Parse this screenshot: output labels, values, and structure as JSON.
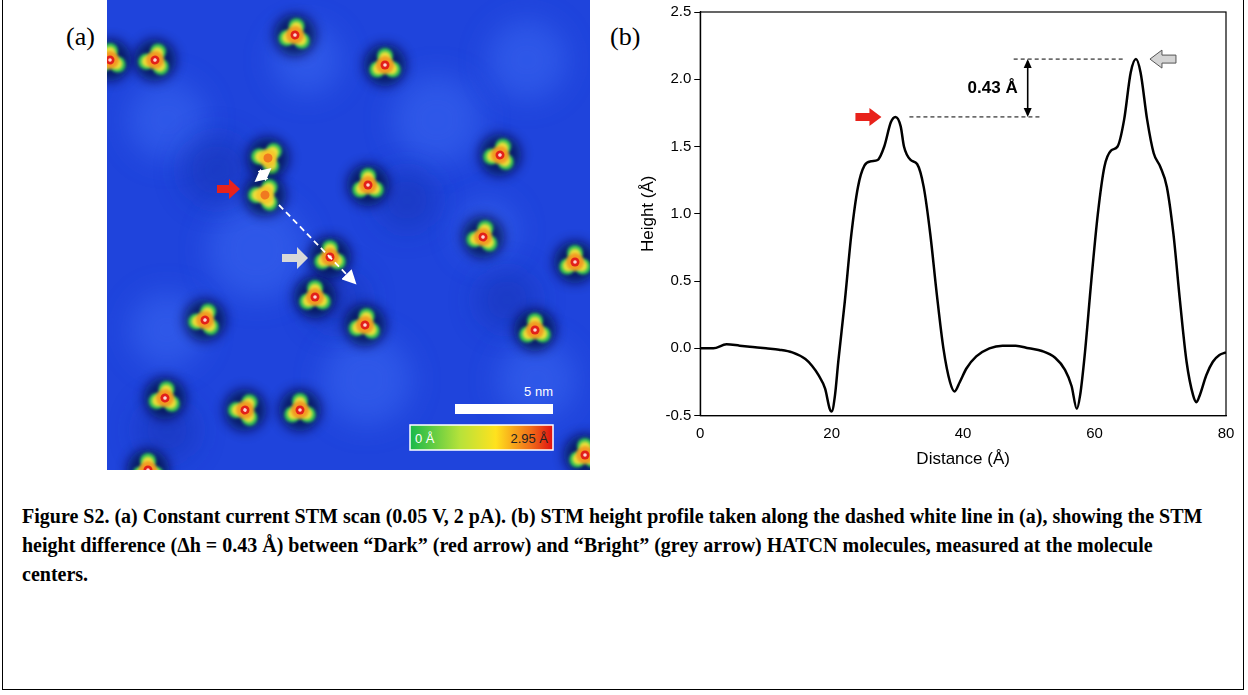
{
  "panels": {
    "a": {
      "label": "(a)",
      "scale_bar": "5 nm",
      "colorbar_labels": [
        "0 Å",
        "2.95 Å"
      ]
    },
    "b": {
      "label": "(b)"
    }
  },
  "chart_data": {
    "type": "line",
    "x_label": "Distance (Å)",
    "y_label": "Height (Å)",
    "x": [
      0,
      2,
      4,
      6,
      8,
      10,
      12,
      14,
      16,
      17,
      18,
      19,
      19.7,
      20,
      20.5,
      21,
      22,
      23,
      24,
      25,
      26,
      27,
      28,
      29,
      29.7,
      30.5,
      31,
      32,
      33,
      34,
      35,
      36,
      37,
      38,
      38.7,
      39.5,
      40.5,
      42,
      44,
      46,
      48,
      50,
      52,
      54,
      55.5,
      56.5,
      57.3,
      57.8,
      58.5,
      59.5,
      60.5,
      61.5,
      62.5,
      63.5,
      64.5,
      65.5,
      66.3,
      67,
      68,
      69,
      70,
      71,
      72,
      73,
      74,
      75,
      75.5,
      76,
      77,
      78,
      79,
      80
    ],
    "values": [
      0.0,
      0.0,
      0.03,
      0.02,
      0.01,
      0.0,
      -0.01,
      -0.03,
      -0.08,
      -0.13,
      -0.2,
      -0.3,
      -0.45,
      -0.47,
      -0.35,
      -0.1,
      0.35,
      0.85,
      1.2,
      1.36,
      1.39,
      1.4,
      1.5,
      1.68,
      1.72,
      1.65,
      1.5,
      1.4,
      1.37,
      1.2,
      0.85,
      0.4,
      0.0,
      -0.25,
      -0.32,
      -0.25,
      -0.15,
      -0.06,
      0.0,
      0.02,
      0.02,
      0.0,
      -0.02,
      -0.07,
      -0.16,
      -0.28,
      -0.45,
      -0.35,
      -0.05,
      0.5,
      1.0,
      1.35,
      1.47,
      1.5,
      1.7,
      2.05,
      2.15,
      2.05,
      1.7,
      1.45,
      1.35,
      1.2,
      0.85,
      0.35,
      -0.1,
      -0.35,
      -0.4,
      -0.35,
      -0.2,
      -0.1,
      -0.05,
      -0.03
    ],
    "color": "#000000",
    "xlim": [
      0,
      80
    ],
    "xticks": [
      0,
      20,
      40,
      60,
      80
    ],
    "ylim": [
      -0.5,
      2.5
    ],
    "yticks": [
      -0.5,
      {
        "value": 0,
        "label": "0.0"
      },
      0.5,
      {
        "value": 1,
        "label": "1.0"
      },
      1.5,
      {
        "value": 2,
        "label": "2.0"
      },
      2.5
    ],
    "grid": false,
    "annotations": [
      {
        "text": "0.43 Å",
        "y_from": 1.72,
        "y_to": 2.15
      }
    ],
    "markers": [
      {
        "x": 29.7,
        "y": 1.72,
        "color": "#e8221b"
      },
      {
        "x": 66.3,
        "y": 2.15,
        "color": "#d4d4d4"
      }
    ]
  },
  "caption": "Figure S2. (a) Constant current STM scan (0.05 V, 2 pA). (b) STM height profile taken along the dashed white line in (a), showing the STM height difference (Δh = 0.43 Å) between “Dark” (red arrow) and “Bright” (grey arrow)  HATCN molecules, measured at the molecule centers."
}
